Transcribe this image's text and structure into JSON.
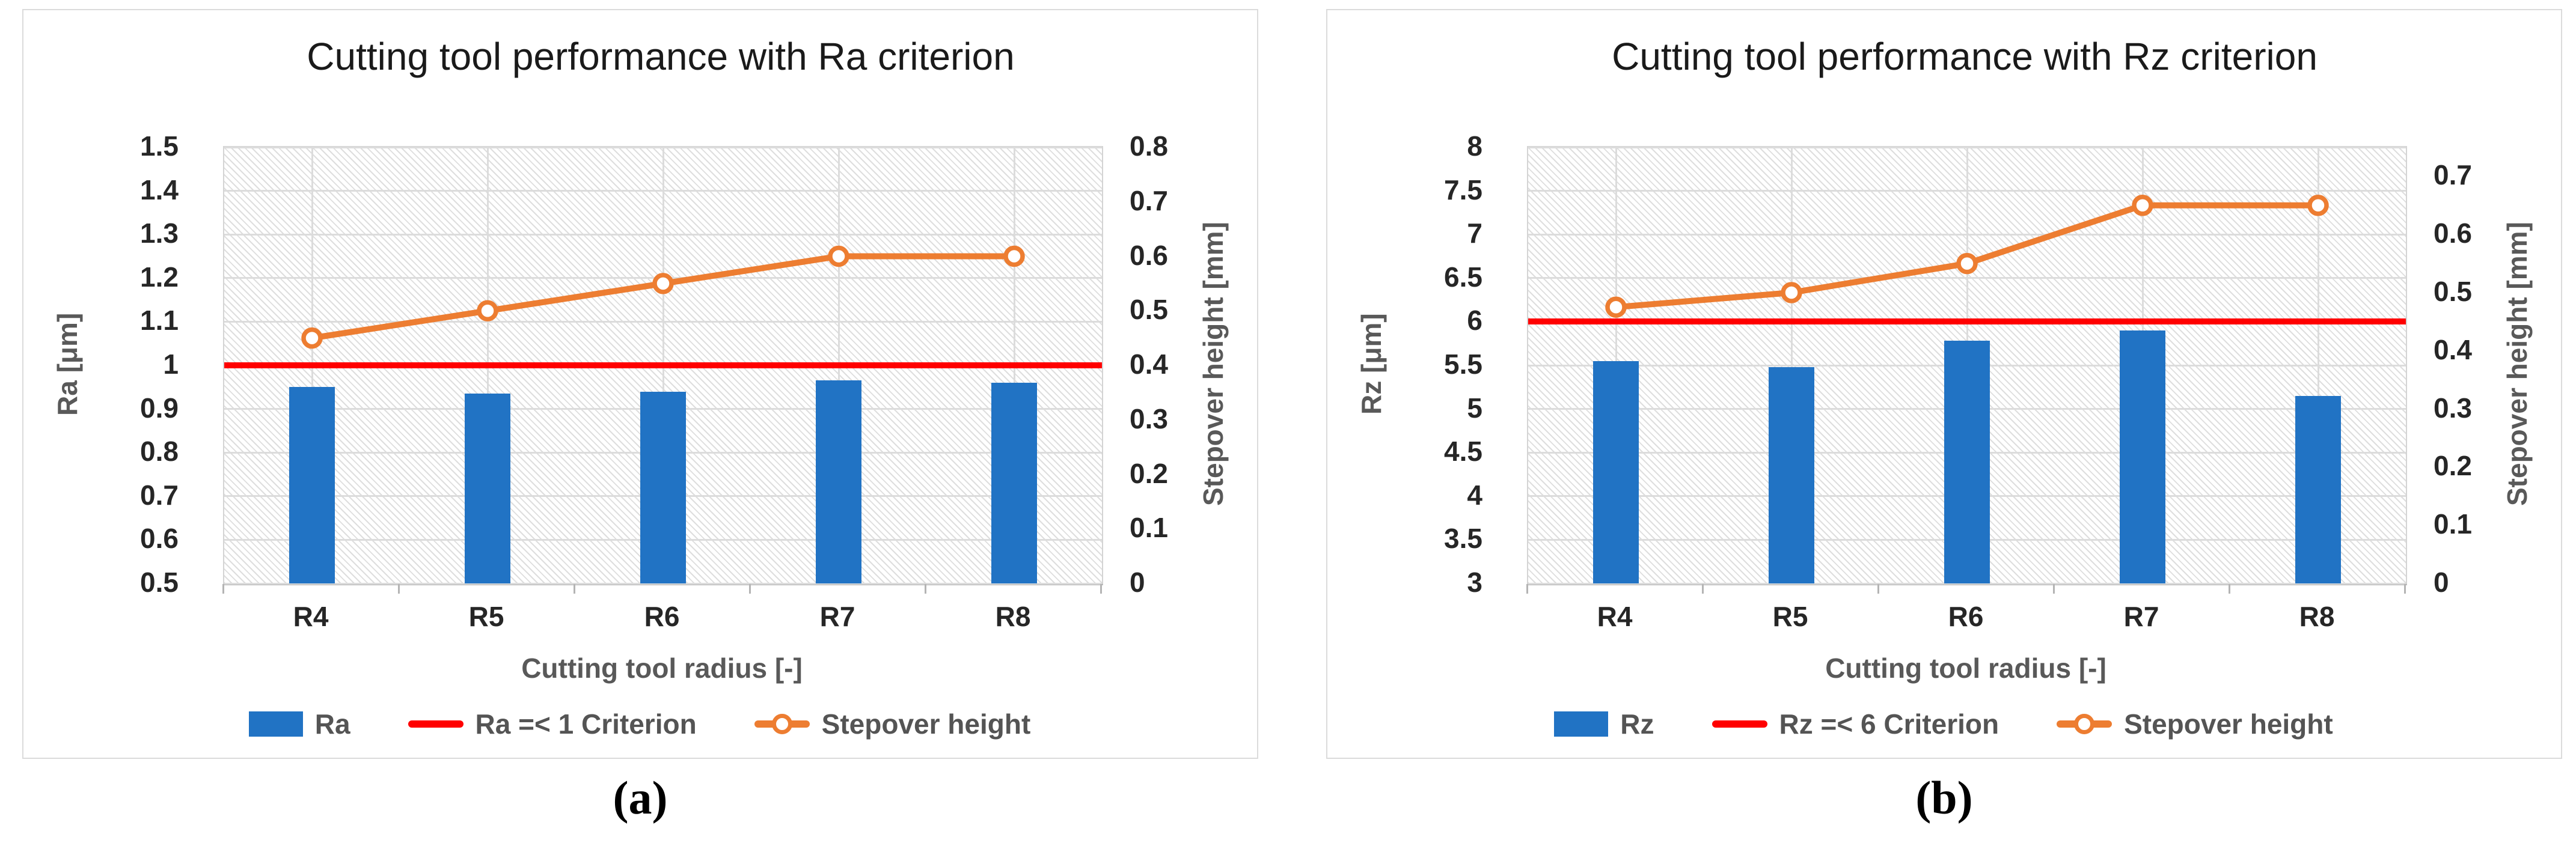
{
  "figure_type": "two-panel scientific chart figure",
  "accent_colors": {
    "bar_blue": "#2173C4",
    "criterion_red": "#FF0000",
    "stepover_orange": "#ED7D31"
  },
  "chart_data": [
    {
      "type": "bar+line combo",
      "title": "Cutting tool performance with Ra criterion",
      "caption": "(a)",
      "x_axis_title": "Cutting tool radius [-]",
      "categories": [
        "R4",
        "R5",
        "R6",
        "R7",
        "R8"
      ],
      "grid": "horizontal and vertical light gray, hatched plot background",
      "legend_position": "bottom",
      "y_left": {
        "title": "Ra [μm]",
        "min": 0.5,
        "max": 1.5,
        "ticks": [
          "1.5",
          "1.4",
          "1.3",
          "1.2",
          "1.1",
          "1",
          "0.9",
          "0.8",
          "0.7",
          "0.6",
          "0.5"
        ]
      },
      "y_right": {
        "title": "Stepover height [mm]",
        "min": 0,
        "max": 0.8,
        "ticks": [
          "0.8",
          "0.7",
          "0.6",
          "0.5",
          "0.4",
          "0.3",
          "0.2",
          "0.1",
          "0"
        ]
      },
      "series": [
        {
          "name": "Ra",
          "type": "bar",
          "axis": "left",
          "color": "#2173C4",
          "values": [
            0.95,
            0.935,
            0.94,
            0.965,
            0.96
          ]
        },
        {
          "name": "Ra =< 1 Criterion",
          "type": "line",
          "axis": "left",
          "color": "#FF0000",
          "values": [
            1,
            1,
            1,
            1,
            1
          ]
        },
        {
          "name": "Stepover height",
          "type": "line-marker",
          "axis": "right",
          "color": "#ED7D31",
          "values": [
            0.45,
            0.5,
            0.55,
            0.6,
            0.6
          ]
        }
      ]
    },
    {
      "type": "bar+line combo",
      "title": "Cutting tool performance with Rz criterion",
      "caption": "(b)",
      "x_axis_title": "Cutting tool radius [-]",
      "categories": [
        "R4",
        "R5",
        "R6",
        "R7",
        "R8"
      ],
      "grid": "horizontal and vertical light gray, hatched plot background",
      "legend_position": "bottom",
      "y_left": {
        "title": "Rz [μm]",
        "min": 3,
        "max": 8,
        "ticks": [
          "8",
          "7.5",
          "7",
          "6.5",
          "6",
          "5.5",
          "5",
          "4.5",
          "4",
          "3.5",
          "3"
        ]
      },
      "y_right": {
        "title": "Stepover height [mm]",
        "min": 0,
        "max": 0.75,
        "ticks": [
          "0.7",
          "0.6",
          "0.5",
          "0.4",
          "0.3",
          "0.2",
          "0.1",
          "0"
        ]
      },
      "series": [
        {
          "name": "Rz",
          "type": "bar",
          "axis": "left",
          "color": "#2173C4",
          "values": [
            5.55,
            5.48,
            5.78,
            5.9,
            5.15
          ]
        },
        {
          "name": "Rz =< 6 Criterion",
          "type": "line",
          "axis": "left",
          "color": "#FF0000",
          "values": [
            6,
            6,
            6,
            6,
            6
          ]
        },
        {
          "name": "Stepover height",
          "type": "line-marker",
          "axis": "right",
          "color": "#ED7D31",
          "values": [
            0.475,
            0.5,
            0.55,
            0.65,
            0.65
          ]
        }
      ]
    }
  ]
}
